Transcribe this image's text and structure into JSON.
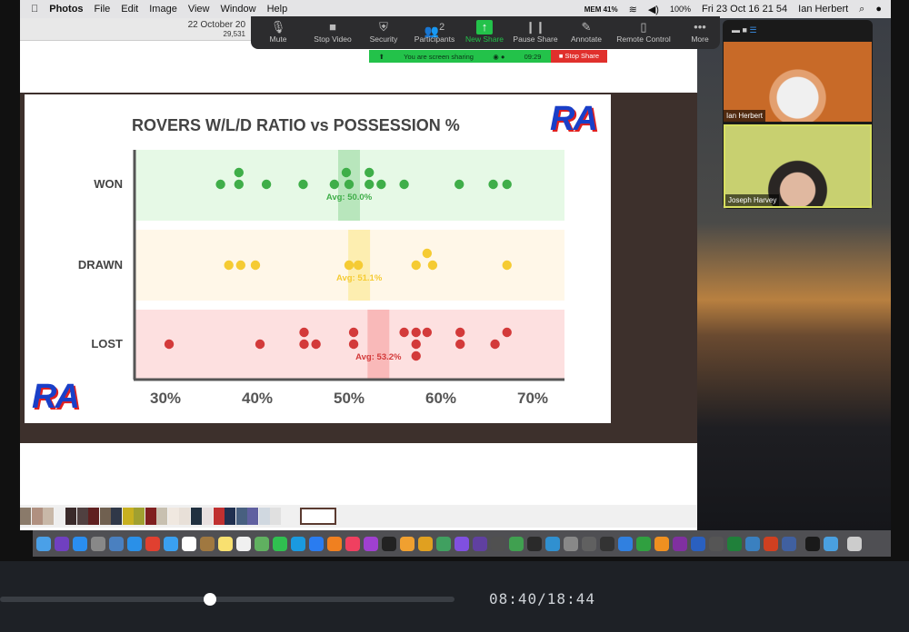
{
  "menubar": {
    "app": "Photos",
    "items": [
      "File",
      "Edit",
      "Image",
      "View",
      "Window",
      "Help"
    ],
    "mem": "MEM 41%",
    "battery": "100%",
    "clock": "Fri 23 Oct  16 21 54",
    "user": "Ian Herbert"
  },
  "photos": {
    "title_date": "22 October 20",
    "title_count": "29,531"
  },
  "zoom_toolbar": {
    "items": [
      {
        "label": "Mute",
        "icon": "microphone-icon",
        "glyph": "🎙"
      },
      {
        "label": "Stop Video",
        "icon": "video-camera-icon",
        "glyph": "■"
      },
      {
        "label": "Security",
        "icon": "shield-icon",
        "glyph": "⛨"
      },
      {
        "label": "Participants",
        "icon": "participants-icon",
        "glyph": "👥",
        "badge": "2"
      },
      {
        "label": "New Share",
        "icon": "share-arrow-icon",
        "glyph": "↑"
      },
      {
        "label": "Pause Share",
        "icon": "pause-icon",
        "glyph": "❙❙"
      },
      {
        "label": "Annotate",
        "icon": "pencil-icon",
        "glyph": "✎"
      },
      {
        "label": "Remote Control",
        "icon": "mouse-icon",
        "glyph": "▯"
      },
      {
        "label": "More",
        "icon": "more-dots-icon",
        "glyph": "•••"
      }
    ],
    "sharing_text": "You are screen sharing",
    "sharing_timer": "09:29",
    "stop_share": "Stop Share",
    "new_share_color": "#23c24a"
  },
  "video": {
    "participants": [
      {
        "name": "Ian Herbert"
      },
      {
        "name": "Joseph Harvey"
      }
    ]
  },
  "player": {
    "time": "08:40/18:44",
    "progress": 0.4612
  },
  "chart_data": {
    "type": "scatter",
    "title": "ROVERS W/L/D RATIO vs POSSESSION %",
    "xlim": [
      30,
      70
    ],
    "xticks": [
      "30%",
      "40%",
      "50%",
      "60%",
      "70%"
    ],
    "logo": "RA",
    "series": [
      {
        "name": "WON",
        "color": "#3fae49",
        "band": "#e6f9e6",
        "avgband": "#b8e6bc",
        "avg": 50.0,
        "avg_label": "Avg: 50.0%",
        "points": [
          [
            36,
            0
          ],
          [
            38,
            0
          ],
          [
            38,
            1
          ],
          [
            41,
            0
          ],
          [
            45,
            0
          ],
          [
            48.4,
            0
          ],
          [
            50,
            0
          ],
          [
            49.7,
            1
          ],
          [
            52.2,
            0
          ],
          [
            52.2,
            1
          ],
          [
            53.5,
            0
          ],
          [
            56,
            0
          ],
          [
            62,
            0
          ],
          [
            65.7,
            0
          ],
          [
            67.2,
            0
          ]
        ]
      },
      {
        "name": "DRAWN",
        "color": "#f5cb33",
        "band": "#fff7e8",
        "avgband": "#fdeeb0",
        "avg": 51.1,
        "avg_label": "Avg: 51.1%",
        "points": [
          [
            36.9,
            0
          ],
          [
            38.2,
            0
          ],
          [
            39.8,
            0
          ],
          [
            50,
            0
          ],
          [
            51,
            0
          ],
          [
            57.3,
            0
          ],
          [
            58.5,
            1
          ],
          [
            59.1,
            0
          ],
          [
            67.2,
            0
          ]
        ]
      },
      {
        "name": "LOST",
        "color": "#d33a3a",
        "band": "#fde0e0",
        "avgband": "#f9b9b9",
        "avg": 53.2,
        "avg_label": "Avg: 53.2%",
        "points": [
          [
            30.4,
            0
          ],
          [
            40.3,
            0
          ],
          [
            45.1,
            0
          ],
          [
            45.1,
            1
          ],
          [
            46.4,
            0
          ],
          [
            50.5,
            0
          ],
          [
            50.5,
            1
          ],
          [
            56,
            1
          ],
          [
            57.3,
            1
          ],
          [
            57.3,
            0
          ],
          [
            57.3,
            -1
          ],
          [
            58.5,
            1
          ],
          [
            62.1,
            0
          ],
          [
            62.1,
            1
          ],
          [
            65.9,
            0
          ],
          [
            67.2,
            1
          ]
        ]
      }
    ]
  },
  "dock": {
    "icons": [
      "finder",
      "siri",
      "app-store",
      "launchpad",
      "preview",
      "safari",
      "chrome",
      "messages",
      "calendar",
      "notefile",
      "notes",
      "textedit",
      "maps",
      "facetime",
      "skype",
      "zoom",
      "books",
      "music",
      "podcasts",
      "apple-tv",
      "photos",
      "photo-slideshow",
      "aperture",
      "imovie",
      "final-cut",
      "compressor",
      "camtasia",
      "coda",
      "xcode",
      "disk-utility",
      "activity-monitor",
      "speedometer",
      "keynote",
      "numbers",
      "pages",
      "onenote",
      "word",
      "calculator",
      "excel",
      "pencil",
      "powerpoint",
      "filemerge",
      "quicktime",
      "downloads",
      "trash"
    ]
  }
}
